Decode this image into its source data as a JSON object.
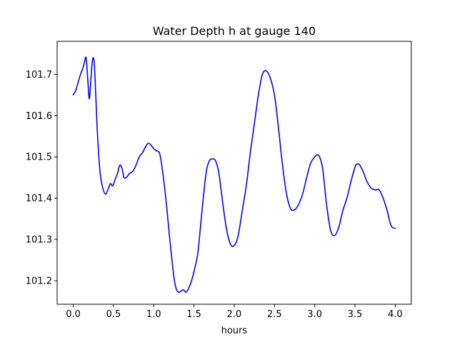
{
  "chart_data": {
    "type": "line",
    "title": "Water Depth h at gauge 140",
    "xlabel": "hours",
    "ylabel": "",
    "xlim": [
      -0.2,
      4.2
    ],
    "ylim": [
      101.143,
      101.78
    ],
    "xticks": [
      0.0,
      0.5,
      1.0,
      1.5,
      2.0,
      2.5,
      3.0,
      3.5,
      4.0
    ],
    "xtick_labels": [
      "0.0",
      "0.5",
      "1.0",
      "1.5",
      "2.0",
      "2.5",
      "3.0",
      "3.5",
      "4.0"
    ],
    "yticks": [
      101.2,
      101.3,
      101.4,
      101.5,
      101.6,
      101.7
    ],
    "ytick_labels": [
      "101.2",
      "101.3",
      "101.4",
      "101.5",
      "101.6",
      "101.7"
    ],
    "grid": false,
    "series": [
      {
        "name": "",
        "color": "#0000ff",
        "x": [
          0.0,
          0.03,
          0.06,
          0.09,
          0.12,
          0.14,
          0.16,
          0.18,
          0.2,
          0.22,
          0.24,
          0.26,
          0.28,
          0.3,
          0.33,
          0.36,
          0.4,
          0.43,
          0.46,
          0.49,
          0.52,
          0.55,
          0.58,
          0.61,
          0.63,
          0.66,
          0.7,
          0.74,
          0.78,
          0.82,
          0.86,
          0.9,
          0.93,
          0.96,
          1.0,
          1.03,
          1.07,
          1.1,
          1.15,
          1.2,
          1.25,
          1.28,
          1.31,
          1.34,
          1.37,
          1.4,
          1.43,
          1.47,
          1.51,
          1.55,
          1.6,
          1.65,
          1.69,
          1.73,
          1.77,
          1.81,
          1.85,
          1.9,
          1.95,
          2.0,
          2.05,
          2.1,
          2.15,
          2.2,
          2.25,
          2.3,
          2.35,
          2.4,
          2.45,
          2.5,
          2.55,
          2.6,
          2.65,
          2.7,
          2.75,
          2.8,
          2.85,
          2.9,
          2.95,
          3.0,
          3.03,
          3.06,
          3.1,
          3.15,
          3.2,
          3.25,
          3.3,
          3.35,
          3.4,
          3.45,
          3.5,
          3.53,
          3.56,
          3.6,
          3.65,
          3.7,
          3.75,
          3.8,
          3.85,
          3.9,
          3.93,
          3.96,
          4.0
        ],
        "y": [
          101.65,
          101.66,
          101.68,
          101.7,
          101.715,
          101.73,
          101.74,
          101.69,
          101.64,
          101.69,
          101.735,
          101.73,
          101.65,
          101.56,
          101.47,
          101.43,
          101.41,
          101.42,
          101.435,
          101.43,
          101.445,
          101.46,
          101.48,
          101.47,
          101.45,
          101.45,
          101.46,
          101.465,
          101.48,
          101.5,
          101.51,
          101.525,
          101.533,
          101.53,
          101.52,
          101.515,
          101.51,
          101.48,
          101.4,
          101.3,
          101.21,
          101.18,
          101.172,
          101.175,
          101.178,
          101.172,
          101.18,
          101.2,
          101.23,
          101.27,
          101.37,
          101.46,
          101.49,
          101.495,
          101.49,
          101.46,
          101.4,
          101.33,
          101.29,
          101.285,
          101.31,
          101.37,
          101.43,
          101.51,
          101.58,
          101.65,
          101.7,
          101.708,
          101.69,
          101.65,
          101.57,
          101.48,
          101.41,
          101.375,
          101.372,
          101.385,
          101.41,
          101.45,
          101.485,
          101.5,
          101.505,
          101.5,
          101.47,
          101.38,
          101.32,
          101.31,
          101.33,
          101.37,
          101.4,
          101.44,
          101.475,
          101.483,
          101.48,
          101.465,
          101.44,
          101.425,
          101.42,
          101.42,
          101.4,
          101.37,
          101.345,
          101.33,
          101.327
        ]
      }
    ]
  }
}
